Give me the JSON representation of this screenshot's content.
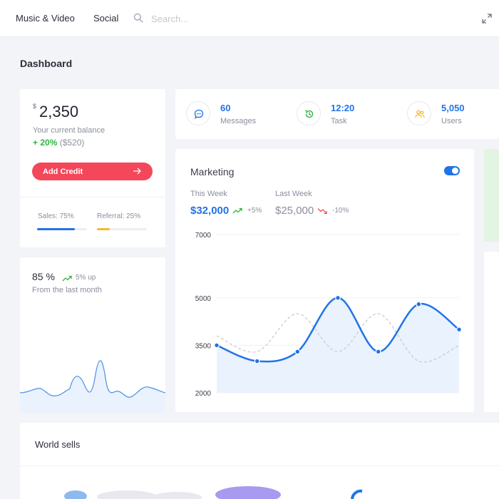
{
  "topbar": {
    "nav": [
      {
        "label": "Music & Video"
      },
      {
        "label": "Social"
      }
    ],
    "search": {
      "placeholder": "Search..."
    },
    "icons": {
      "search": "search-icon",
      "expand": "expand-icon"
    }
  },
  "page": {
    "title": "Dashboard"
  },
  "balance": {
    "currency": "$",
    "amount": "2,350",
    "label": "Your current balance",
    "change": "+ 20%",
    "change_amount": "($520)",
    "button_label": "Add Credit",
    "sales_label": "Sales: 75%",
    "sales_progress": 0.75,
    "referral_label": "Referral: 25%",
    "referral_progress": 0.25
  },
  "stats": [
    {
      "value": "60",
      "label": "Messages",
      "icon": "chat-icon"
    },
    {
      "value": "12:20",
      "label": "Task",
      "icon": "history-icon"
    },
    {
      "value": "5,050",
      "label": "Users",
      "icon": "users-icon"
    }
  ],
  "marketing": {
    "title": "Marketing",
    "toggle_on": true,
    "this_week": {
      "label": "This Week",
      "value": "$32,000",
      "change": "+5%"
    },
    "last_week": {
      "label": "Last Week",
      "value": "$25,000",
      "change": "-10%"
    }
  },
  "growth": {
    "value": "85 %",
    "change": "5% up",
    "label": "From the last month"
  },
  "world": {
    "title": "World sells"
  },
  "colors": {
    "accent": "#2173e8",
    "danger": "#f4475a",
    "success": "#2fb344",
    "warning": "#f5b82e",
    "page_bg": "#f3f4f8",
    "card_bg": "#ffffff"
  },
  "chart_data": {
    "type": "line",
    "title": "Marketing",
    "yticks": [
      2000,
      3500,
      5000,
      7000
    ],
    "ylim": [
      2000,
      7000
    ],
    "grid": true,
    "series": [
      {
        "name": "This Week",
        "style": "solid",
        "values": [
          3500,
          3000,
          3300,
          5000,
          3300,
          4800,
          4000
        ]
      },
      {
        "name": "Last Week",
        "style": "dashed",
        "values": [
          3800,
          3300,
          4500,
          3300,
          4500,
          3000,
          3500
        ]
      }
    ]
  }
}
